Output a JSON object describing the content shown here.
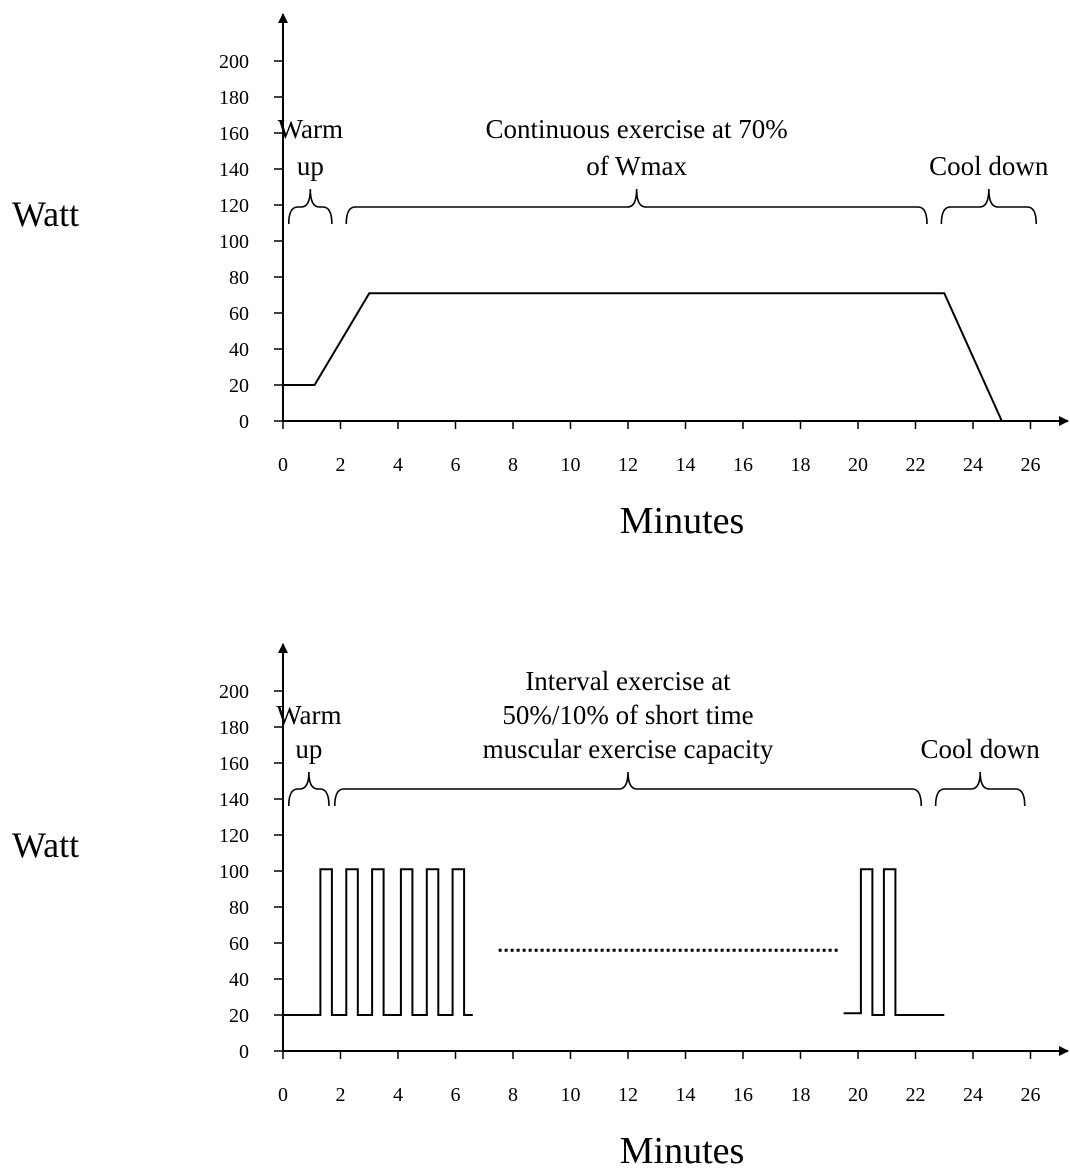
{
  "chart_data": [
    {
      "type": "line",
      "ylabel": "Watt",
      "xlabel": "Minutes",
      "ylim": [
        0,
        200
      ],
      "xlim": [
        0,
        26
      ],
      "yticks": [
        0,
        20,
        40,
        60,
        80,
        100,
        120,
        140,
        160,
        180,
        200
      ],
      "xticks": [
        0,
        2,
        4,
        6,
        8,
        10,
        12,
        14,
        16,
        18,
        20,
        22,
        24,
        26
      ],
      "grid": false,
      "series": [
        {
          "x": [
            0,
            1.1,
            3.0,
            23.0,
            25.0
          ],
          "y": [
            20,
            20,
            71,
            71,
            0
          ]
        }
      ],
      "phases": [
        {
          "lines": [
            "Warm",
            "up"
          ],
          "x_start": 0.2,
          "x_end": 1.7
        },
        {
          "lines": [
            "Continuous exercise at 70%",
            "of Wmax"
          ],
          "x_start": 2.2,
          "x_end": 22.4
        },
        {
          "lines": [
            "Cool down"
          ],
          "x_start": 22.9,
          "x_end": 26.2
        }
      ]
    },
    {
      "type": "line",
      "ylabel": "Watt",
      "xlabel": "Minutes",
      "ylim": [
        0,
        200
      ],
      "xlim": [
        0,
        26
      ],
      "yticks": [
        0,
        20,
        40,
        60,
        80,
        100,
        120,
        140,
        160,
        180,
        200
      ],
      "xticks": [
        0,
        2,
        4,
        6,
        8,
        10,
        12,
        14,
        16,
        18,
        20,
        22,
        24,
        26
      ],
      "grid": false,
      "series": [
        {
          "segments": [
            {
              "x": [
                0,
                1.3,
                1.3,
                1.7,
                1.7,
                2.2,
                2.2,
                2.6,
                2.6,
                3.1,
                3.1,
                3.5,
                3.5,
                4.1,
                4.1,
                4.5,
                4.5,
                5.0,
                5.0,
                5.4,
                5.4,
                5.9,
                5.9,
                6.3,
                6.3,
                6.6
              ],
              "y": [
                20,
                20,
                101,
                101,
                20,
                20,
                101,
                101,
                20,
                20,
                101,
                101,
                20,
                20,
                101,
                101,
                20,
                20,
                101,
                101,
                20,
                20,
                101,
                101,
                20,
                20
              ]
            },
            {
              "x": [
                19.5,
                20.1,
                20.1,
                20.5,
                20.5,
                20.9,
                20.9,
                21.3,
                21.3,
                23.0
              ],
              "y": [
                21,
                21,
                101,
                101,
                20,
                20,
                101,
                101,
                20,
                20
              ]
            }
          ],
          "gap": {
            "x": [
              7.5,
              19.3
            ],
            "y": 56,
            "style": "dotted"
          }
        }
      ],
      "phases": [
        {
          "lines": [
            "Warm",
            "up"
          ],
          "x_start": 0.2,
          "x_end": 1.6
        },
        {
          "lines": [
            "Interval exercise at",
            "50%/10% of short time",
            "muscular exercise capacity"
          ],
          "x_start": 1.8,
          "x_end": 22.2
        },
        {
          "lines": [
            "Cool down"
          ],
          "x_start": 22.7,
          "x_end": 25.8
        }
      ]
    }
  ]
}
